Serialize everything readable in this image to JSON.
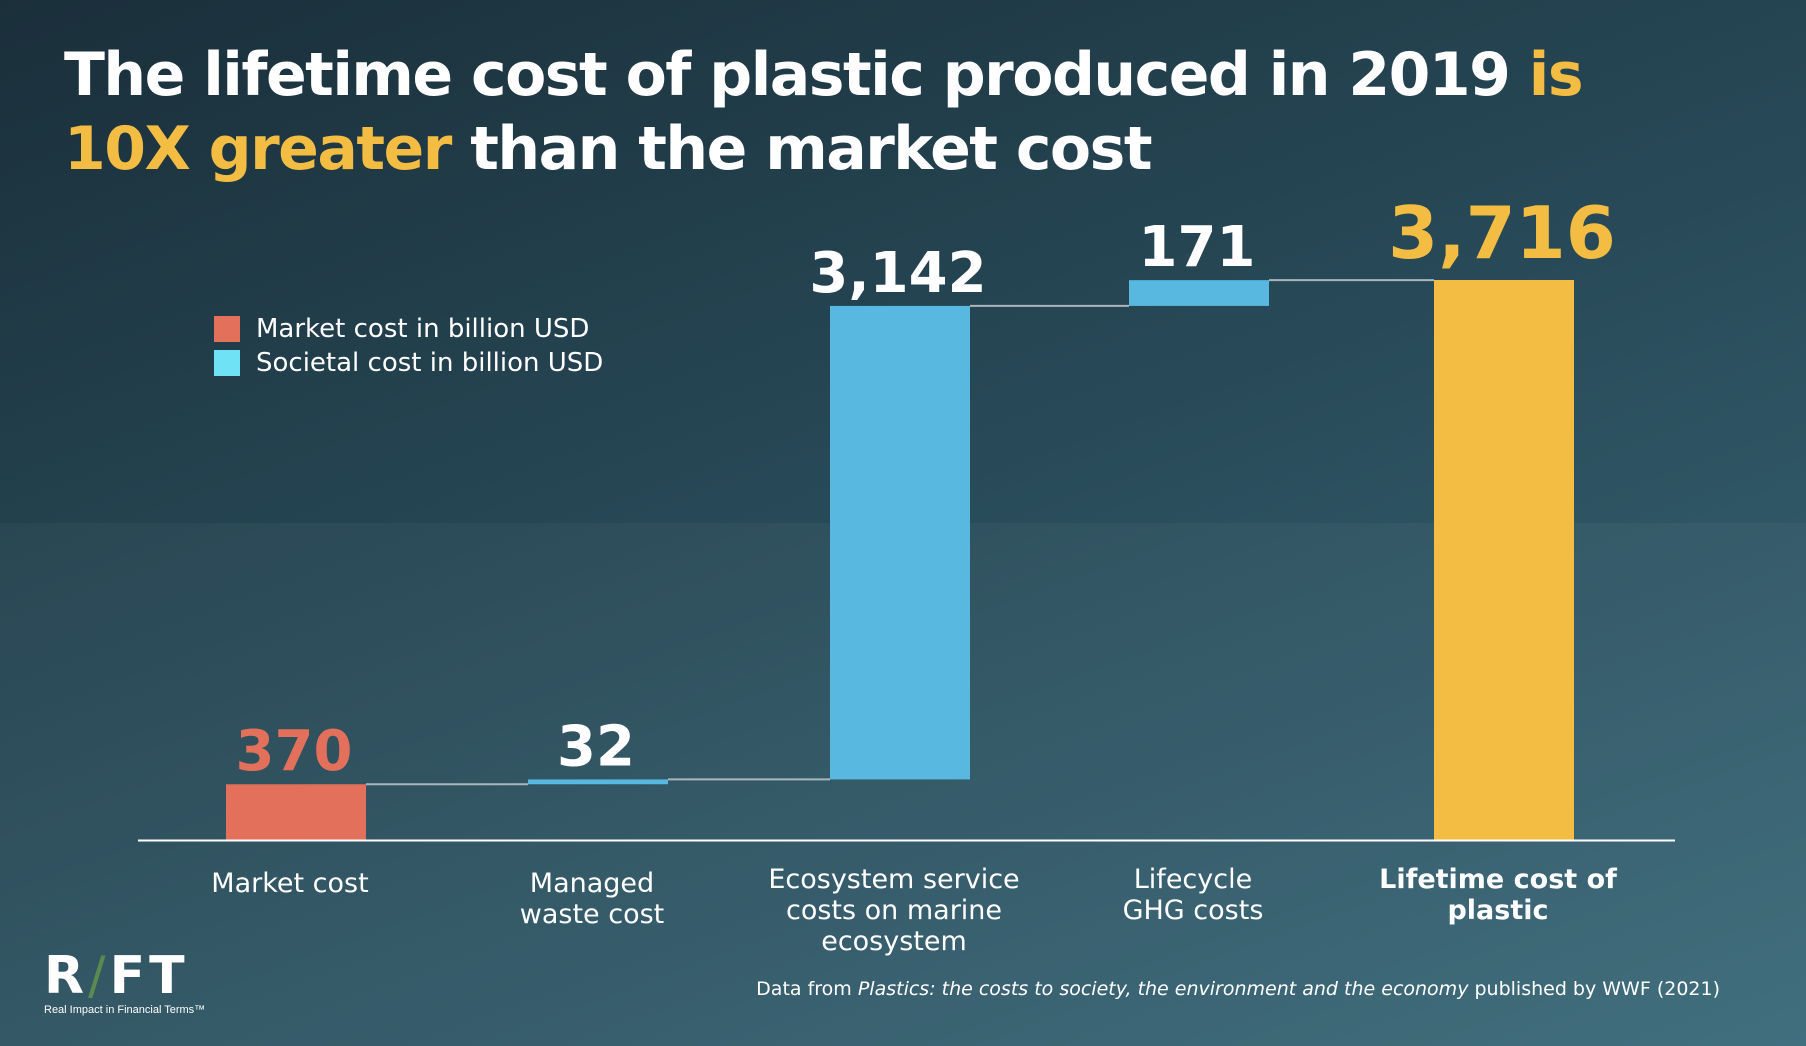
{
  "title": {
    "part1": "The lifetime cost of plastic produced in 2019 ",
    "highlight": "is 10X greater",
    "part2": " than the market cost"
  },
  "colors": {
    "market": "#e2705a",
    "societal": "#58b8e0",
    "legend_societal": "#6fe2f5",
    "total": "#f2bd42",
    "connector": "#aab6bb",
    "axis": "#ffffff"
  },
  "legend": {
    "items": [
      {
        "label": "Market cost in billion USD",
        "color": "#e2705a"
      },
      {
        "label": "Societal cost in billion USD",
        "color": "#6fe2f5"
      }
    ]
  },
  "chart_data": {
    "type": "bar",
    "subtype": "waterfall",
    "categories": [
      [
        "Market cost"
      ],
      [
        "Managed",
        "waste cost"
      ],
      [
        "Ecosystem service",
        "costs on marine",
        "ecosystem"
      ],
      [
        "Lifecycle",
        "GHG costs"
      ],
      [
        "Lifetime cost of",
        "plastic"
      ]
    ],
    "values": [
      370,
      32,
      3142,
      171,
      3716
    ],
    "value_labels": [
      "370",
      "32",
      "3,142",
      "171",
      "3,716"
    ],
    "kinds": [
      "market",
      "societal",
      "societal",
      "societal",
      "total"
    ],
    "units": "billion USD",
    "ylim": [
      0,
      4000
    ],
    "grid": false,
    "legend_position": "top-left"
  },
  "logo": {
    "mark_left": "R",
    "mark_slash": "/",
    "mark_right": "FT",
    "tagline": "Real Impact in Financial Terms™"
  },
  "source": {
    "prefix": "Data from ",
    "title": "Plastics: the costs to society, the environment and the economy",
    "suffix": " published by WWF (2021)"
  }
}
